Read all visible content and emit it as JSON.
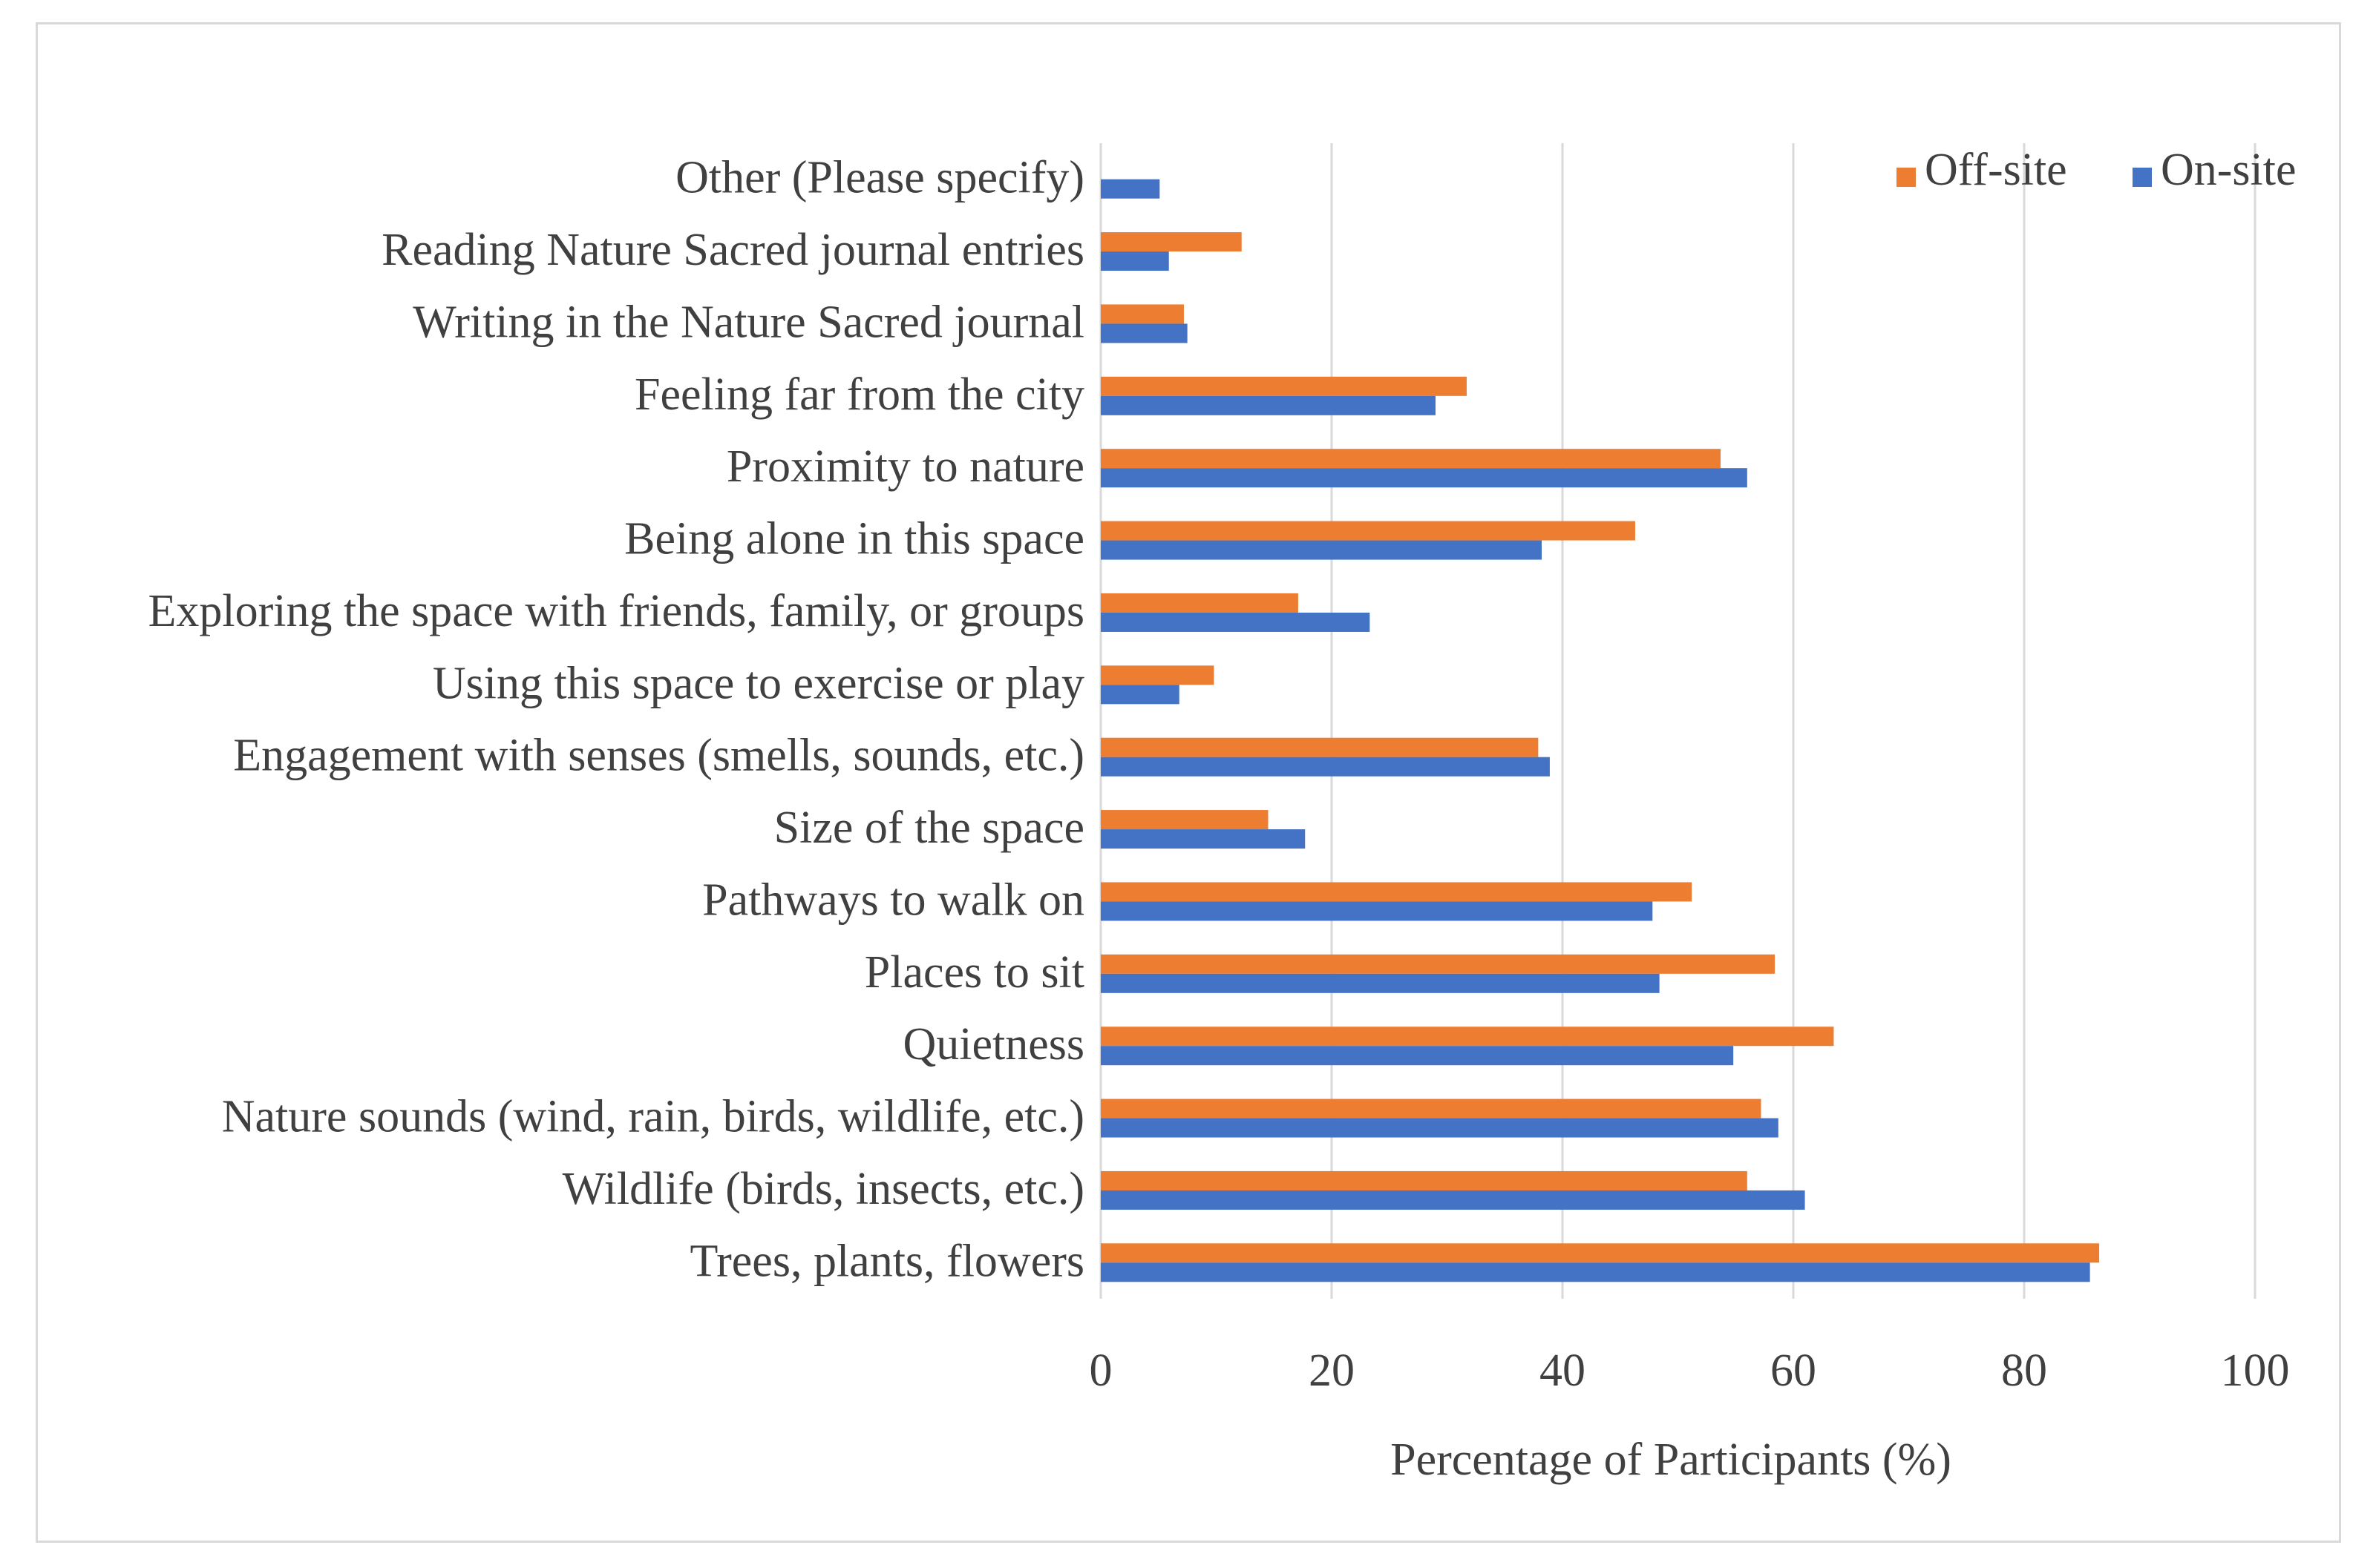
{
  "chart_data": {
    "type": "bar",
    "orientation": "horizontal",
    "title": "",
    "xlabel": "Percentage of Participants (%)",
    "ylabel": "",
    "xlim": [
      0,
      100
    ],
    "xticks": [
      0,
      20,
      40,
      60,
      80,
      100
    ],
    "grid": "vertical",
    "legend_position": "top-right",
    "categories": [
      "Trees, plants, flowers",
      "Wildlife (birds, insects, etc.)",
      "Nature sounds (wind, rain, birds, wildlife, etc.)",
      "Quietness",
      "Places to sit",
      "Pathways to walk on",
      "Size of the space",
      "Engagement with senses (smells, sounds, etc.)",
      "Using this space to exercise or play",
      "Exploring the space with friends, family, or groups",
      "Being alone in this space",
      "Proximity to nature",
      "Feeling far from the city",
      "Writing in the Nature Sacred journal",
      "Reading Nature Sacred journal entries",
      "Other (Please specify)"
    ],
    "series": [
      {
        "name": "On-site",
        "color": "#4472c4",
        "values": [
          85.7,
          61.0,
          58.7,
          54.8,
          48.4,
          47.8,
          17.7,
          38.9,
          6.8,
          23.3,
          38.2,
          56.0,
          29.0,
          7.5,
          5.9,
          5.1
        ]
      },
      {
        "name": "Off-site",
        "color": "#ed7d31",
        "values": [
          86.5,
          56.0,
          57.2,
          63.5,
          58.4,
          51.2,
          14.5,
          37.9,
          9.8,
          17.1,
          46.3,
          53.7,
          31.7,
          7.2,
          12.2,
          0
        ]
      }
    ],
    "legend": [
      "Off-site",
      "On-site"
    ]
  }
}
